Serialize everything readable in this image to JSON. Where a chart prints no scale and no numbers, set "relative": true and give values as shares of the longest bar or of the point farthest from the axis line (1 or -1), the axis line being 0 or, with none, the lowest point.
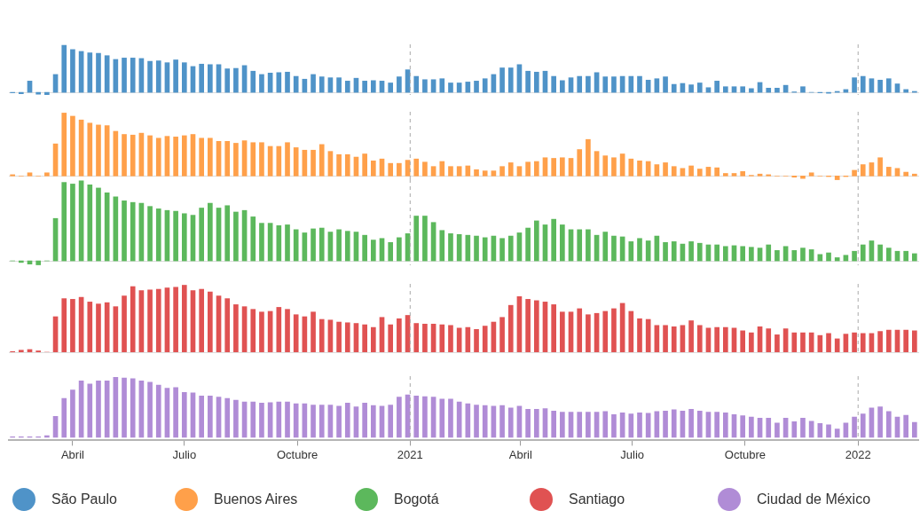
{
  "chart_data": [
    {
      "type": "bar",
      "relative": true,
      "tick_labels": false,
      "xlim": [
        "2020-02-09",
        "2022-02-19"
      ],
      "x": [
        "2020-02-12",
        "2020-02-19",
        "2020-02-26",
        "2020-03-04",
        "2020-03-11",
        "2020-03-18",
        "2020-03-25",
        "2020-04-01",
        "2020-04-08",
        "2020-04-15",
        "2020-04-22",
        "2020-04-29",
        "2020-05-06",
        "2020-05-13",
        "2020-05-20",
        "2020-05-27",
        "2020-06-03",
        "2020-06-10",
        "2020-06-17",
        "2020-06-24",
        "2020-07-01",
        "2020-07-08",
        "2020-07-15",
        "2020-07-22",
        "2020-07-29",
        "2020-08-05",
        "2020-08-12",
        "2020-08-19",
        "2020-08-26",
        "2020-09-02",
        "2020-09-09",
        "2020-09-16",
        "2020-09-23",
        "2020-09-30",
        "2020-10-07",
        "2020-10-14",
        "2020-10-21",
        "2020-10-28",
        "2020-11-04",
        "2020-11-11",
        "2020-11-18",
        "2020-11-25",
        "2020-12-02",
        "2020-12-09",
        "2020-12-16",
        "2020-12-23",
        "2020-12-30",
        "2021-01-06",
        "2021-01-13",
        "2021-01-20",
        "2021-01-27",
        "2021-02-03",
        "2021-02-10",
        "2021-02-17",
        "2021-02-24",
        "2021-03-03",
        "2021-03-10",
        "2021-03-17",
        "2021-03-24",
        "2021-03-31",
        "2021-04-07",
        "2021-04-14",
        "2021-04-21",
        "2021-04-28",
        "2021-05-05",
        "2021-05-12",
        "2021-05-19",
        "2021-05-26",
        "2021-06-02",
        "2021-06-09",
        "2021-06-16",
        "2021-06-23",
        "2021-06-30",
        "2021-07-07",
        "2021-07-14",
        "2021-07-21",
        "2021-07-28",
        "2021-08-04",
        "2021-08-11",
        "2021-08-18",
        "2021-08-25",
        "2021-09-01",
        "2021-09-08",
        "2021-09-15",
        "2021-09-22",
        "2021-09-29",
        "2021-10-06",
        "2021-10-13",
        "2021-10-20",
        "2021-10-27",
        "2021-11-03",
        "2021-11-10",
        "2021-11-17",
        "2021-11-24",
        "2021-12-01",
        "2021-12-08",
        "2021-12-15",
        "2021-12-22",
        "2021-12-29",
        "2022-01-05",
        "2022-01-12",
        "2022-01-19",
        "2022-01-26",
        "2022-02-02",
        "2022-02-09",
        "2022-02-16"
      ],
      "series": [
        {
          "name": "São Paulo",
          "color": "#4f93c8",
          "values": [
            -0.01,
            -0.03,
            0.24,
            -0.04,
            -0.05,
            0.38,
            1,
            0.91,
            0.87,
            0.84,
            0.83,
            0.78,
            0.7,
            0.73,
            0.73,
            0.72,
            0.66,
            0.67,
            0.63,
            0.69,
            0.63,
            0.55,
            0.6,
            0.59,
            0.59,
            0.5,
            0.51,
            0.57,
            0.45,
            0.38,
            0.41,
            0.42,
            0.43,
            0.34,
            0.28,
            0.38,
            0.33,
            0.31,
            0.31,
            0.24,
            0.3,
            0.24,
            0.25,
            0.24,
            0.2,
            0.33,
            0.48,
            0.34,
            0.27,
            0.27,
            0.29,
            0.2,
            0.2,
            0.22,
            0.24,
            0.29,
            0.38,
            0.52,
            0.52,
            0.59,
            0.45,
            0.43,
            0.45,
            0.34,
            0.25,
            0.31,
            0.34,
            0.34,
            0.42,
            0.33,
            0.33,
            0.34,
            0.34,
            0.34,
            0.26,
            0.29,
            0.33,
            0.17,
            0.19,
            0.16,
            0.2,
            0.1,
            0.24,
            0.12,
            0.12,
            0.12,
            0.08,
            0.21,
            0.09,
            0.09,
            0.15,
            0.01,
            0.12,
            0,
            -0.01,
            -0.02,
            0.02,
            0.06,
            0.31,
            0.34,
            0.29,
            0.26,
            0.29,
            0.18,
            0.06,
            0.02
          ]
        }
      ],
      "legend": "bottom",
      "ref_lines": [
        {
          "axis": "x",
          "value": "2021-01-01",
          "color": "#aaaaaa",
          "line_style": "dashed"
        },
        {
          "axis": "x",
          "value": "2022-01-01",
          "color": "#aaaaaa",
          "line_style": "dashed"
        }
      ]
    },
    {
      "type": "bar",
      "relative": true,
      "tick_labels": false,
      "xlim": [
        "2020-02-09",
        "2022-02-19"
      ],
      "x": [
        "2020-02-12",
        "2020-02-19",
        "2020-02-26",
        "2020-03-04",
        "2020-03-11",
        "2020-03-18",
        "2020-03-25",
        "2020-04-01",
        "2020-04-08",
        "2020-04-15",
        "2020-04-22",
        "2020-04-29",
        "2020-05-06",
        "2020-05-13",
        "2020-05-20",
        "2020-05-27",
        "2020-06-03",
        "2020-06-10",
        "2020-06-17",
        "2020-06-24",
        "2020-07-01",
        "2020-07-08",
        "2020-07-15",
        "2020-07-22",
        "2020-07-29",
        "2020-08-05",
        "2020-08-12",
        "2020-08-19",
        "2020-08-26",
        "2020-09-02",
        "2020-09-09",
        "2020-09-16",
        "2020-09-23",
        "2020-09-30",
        "2020-10-07",
        "2020-10-14",
        "2020-10-21",
        "2020-10-28",
        "2020-11-04",
        "2020-11-11",
        "2020-11-18",
        "2020-11-25",
        "2020-12-02",
        "2020-12-09",
        "2020-12-16",
        "2020-12-23",
        "2020-12-30",
        "2021-01-06",
        "2021-01-13",
        "2021-01-20",
        "2021-01-27",
        "2021-02-03",
        "2021-02-10",
        "2021-02-17",
        "2021-02-24",
        "2021-03-03",
        "2021-03-10",
        "2021-03-17",
        "2021-03-24",
        "2021-03-31",
        "2021-04-07",
        "2021-04-14",
        "2021-04-21",
        "2021-04-28",
        "2021-05-05",
        "2021-05-12",
        "2021-05-19",
        "2021-05-26",
        "2021-06-02",
        "2021-06-09",
        "2021-06-16",
        "2021-06-23",
        "2021-06-30",
        "2021-07-07",
        "2021-07-14",
        "2021-07-21",
        "2021-07-28",
        "2021-08-04",
        "2021-08-11",
        "2021-08-18",
        "2021-08-25",
        "2021-09-01",
        "2021-09-08",
        "2021-09-15",
        "2021-09-22",
        "2021-09-29",
        "2021-10-06",
        "2021-10-13",
        "2021-10-20",
        "2021-10-27",
        "2021-11-03",
        "2021-11-10",
        "2021-11-17",
        "2021-11-24",
        "2021-12-01",
        "2021-12-08",
        "2021-12-15",
        "2021-12-22",
        "2021-12-29",
        "2022-01-05",
        "2022-01-12",
        "2022-01-19",
        "2022-01-26",
        "2022-02-02",
        "2022-02-09",
        "2022-02-16"
      ],
      "series": [
        {
          "name": "Buenos Aires",
          "color": "#ffa04a",
          "values": [
            0.02,
            0,
            0.05,
            0,
            0.05,
            0.51,
            1,
            0.95,
            0.89,
            0.84,
            0.81,
            0.8,
            0.71,
            0.66,
            0.65,
            0.68,
            0.64,
            0.6,
            0.63,
            0.62,
            0.64,
            0.66,
            0.6,
            0.6,
            0.55,
            0.55,
            0.52,
            0.56,
            0.53,
            0.53,
            0.47,
            0.47,
            0.53,
            0.45,
            0.41,
            0.41,
            0.5,
            0.39,
            0.34,
            0.34,
            0.3,
            0.35,
            0.24,
            0.27,
            0.2,
            0.2,
            0.25,
            0.27,
            0.22,
            0.15,
            0.23,
            0.15,
            0.15,
            0.16,
            0.1,
            0.08,
            0.08,
            0.15,
            0.21,
            0.15,
            0.22,
            0.23,
            0.29,
            0.28,
            0.29,
            0.28,
            0.42,
            0.58,
            0.39,
            0.32,
            0.29,
            0.35,
            0.27,
            0.24,
            0.23,
            0.18,
            0.21,
            0.15,
            0.12,
            0.16,
            0.11,
            0.14,
            0.13,
            0.04,
            0.04,
            0.07,
            0.01,
            0.03,
            0.02,
            0,
            0,
            -0.02,
            -0.04,
            0.05,
            0,
            -0.01,
            -0.06,
            -0.01,
            0.09,
            0.18,
            0.21,
            0.29,
            0.14,
            0.12,
            0.06,
            0.03
          ]
        }
      ],
      "legend": "bottom",
      "ref_lines": [
        {
          "axis": "x",
          "value": "2021-01-01",
          "color": "#aaaaaa",
          "line_style": "dashed"
        },
        {
          "axis": "x",
          "value": "2022-01-01",
          "color": "#aaaaaa",
          "line_style": "dashed"
        }
      ]
    },
    {
      "type": "bar",
      "relative": true,
      "tick_labels": false,
      "xlim": [
        "2020-02-09",
        "2022-02-19"
      ],
      "x": [
        "2020-02-12",
        "2020-02-19",
        "2020-02-26",
        "2020-03-04",
        "2020-03-11",
        "2020-03-18",
        "2020-03-25",
        "2020-04-01",
        "2020-04-08",
        "2020-04-15",
        "2020-04-22",
        "2020-04-29",
        "2020-05-06",
        "2020-05-13",
        "2020-05-20",
        "2020-05-27",
        "2020-06-03",
        "2020-06-10",
        "2020-06-17",
        "2020-06-24",
        "2020-07-01",
        "2020-07-08",
        "2020-07-15",
        "2020-07-22",
        "2020-07-29",
        "2020-08-05",
        "2020-08-12",
        "2020-08-19",
        "2020-08-26",
        "2020-09-02",
        "2020-09-09",
        "2020-09-16",
        "2020-09-23",
        "2020-09-30",
        "2020-10-07",
        "2020-10-14",
        "2020-10-21",
        "2020-10-28",
        "2020-11-04",
        "2020-11-11",
        "2020-11-18",
        "2020-11-25",
        "2020-12-02",
        "2020-12-09",
        "2020-12-16",
        "2020-12-23",
        "2020-12-30",
        "2021-01-06",
        "2021-01-13",
        "2021-01-20",
        "2021-01-27",
        "2021-02-03",
        "2021-02-10",
        "2021-02-17",
        "2021-02-24",
        "2021-03-03",
        "2021-03-10",
        "2021-03-17",
        "2021-03-24",
        "2021-03-31",
        "2021-04-07",
        "2021-04-14",
        "2021-04-21",
        "2021-04-28",
        "2021-05-05",
        "2021-05-12",
        "2021-05-19",
        "2021-05-26",
        "2021-06-02",
        "2021-06-09",
        "2021-06-16",
        "2021-06-23",
        "2021-06-30",
        "2021-07-07",
        "2021-07-14",
        "2021-07-21",
        "2021-07-28",
        "2021-08-04",
        "2021-08-11",
        "2021-08-18",
        "2021-08-25",
        "2021-09-01",
        "2021-09-08",
        "2021-09-15",
        "2021-09-22",
        "2021-09-29",
        "2021-10-06",
        "2021-10-13",
        "2021-10-20",
        "2021-10-27",
        "2021-11-03",
        "2021-11-10",
        "2021-11-17",
        "2021-11-24",
        "2021-12-01",
        "2021-12-08",
        "2021-12-15",
        "2021-12-22",
        "2021-12-29",
        "2022-01-05",
        "2022-01-12",
        "2022-01-19",
        "2022-01-26",
        "2022-02-02",
        "2022-02-09",
        "2022-02-16"
      ],
      "series": [
        {
          "name": "Bogotá",
          "color": "#5cb85c",
          "values": [
            0,
            -0.02,
            -0.04,
            -0.05,
            0,
            0.53,
            0.98,
            0.96,
            1,
            0.95,
            0.91,
            0.85,
            0.8,
            0.75,
            0.73,
            0.72,
            0.68,
            0.65,
            0.63,
            0.62,
            0.59,
            0.57,
            0.66,
            0.72,
            0.66,
            0.69,
            0.61,
            0.63,
            0.55,
            0.47,
            0.47,
            0.44,
            0.45,
            0.39,
            0.35,
            0.4,
            0.41,
            0.36,
            0.39,
            0.37,
            0.36,
            0.32,
            0.26,
            0.28,
            0.23,
            0.29,
            0.34,
            0.56,
            0.56,
            0.48,
            0.38,
            0.34,
            0.33,
            0.32,
            0.31,
            0.29,
            0.31,
            0.28,
            0.31,
            0.35,
            0.41,
            0.5,
            0.45,
            0.52,
            0.45,
            0.39,
            0.39,
            0.39,
            0.32,
            0.36,
            0.31,
            0.3,
            0.24,
            0.28,
            0.25,
            0.31,
            0.23,
            0.24,
            0.21,
            0.24,
            0.22,
            0.2,
            0.2,
            0.18,
            0.19,
            0.18,
            0.17,
            0.16,
            0.2,
            0.13,
            0.18,
            0.13,
            0.16,
            0.14,
            0.08,
            0.1,
            0.04,
            0.07,
            0.12,
            0.2,
            0.25,
            0.2,
            0.16,
            0.12,
            0.12,
            0.09
          ]
        }
      ],
      "legend": "bottom",
      "ref_lines": [
        {
          "axis": "x",
          "value": "2021-01-01",
          "color": "#aaaaaa",
          "line_style": "dashed"
        },
        {
          "axis": "x",
          "value": "2022-01-01",
          "color": "#aaaaaa",
          "line_style": "dashed"
        }
      ]
    },
    {
      "type": "bar",
      "relative": true,
      "tick_labels": false,
      "xlim": [
        "2020-02-09",
        "2022-02-19"
      ],
      "x": [
        "2020-02-12",
        "2020-02-19",
        "2020-02-26",
        "2020-03-04",
        "2020-03-11",
        "2020-03-18",
        "2020-03-25",
        "2020-04-01",
        "2020-04-08",
        "2020-04-15",
        "2020-04-22",
        "2020-04-29",
        "2020-05-06",
        "2020-05-13",
        "2020-05-20",
        "2020-05-27",
        "2020-06-03",
        "2020-06-10",
        "2020-06-17",
        "2020-06-24",
        "2020-07-01",
        "2020-07-08",
        "2020-07-15",
        "2020-07-22",
        "2020-07-29",
        "2020-08-05",
        "2020-08-12",
        "2020-08-19",
        "2020-08-26",
        "2020-09-02",
        "2020-09-09",
        "2020-09-16",
        "2020-09-23",
        "2020-09-30",
        "2020-10-07",
        "2020-10-14",
        "2020-10-21",
        "2020-10-28",
        "2020-11-04",
        "2020-11-11",
        "2020-11-18",
        "2020-11-25",
        "2020-12-02",
        "2020-12-09",
        "2020-12-16",
        "2020-12-23",
        "2020-12-30",
        "2021-01-06",
        "2021-01-13",
        "2021-01-20",
        "2021-01-27",
        "2021-02-03",
        "2021-02-10",
        "2021-02-17",
        "2021-02-24",
        "2021-03-03",
        "2021-03-10",
        "2021-03-17",
        "2021-03-24",
        "2021-03-31",
        "2021-04-07",
        "2021-04-14",
        "2021-04-21",
        "2021-04-28",
        "2021-05-05",
        "2021-05-12",
        "2021-05-19",
        "2021-05-26",
        "2021-06-02",
        "2021-06-09",
        "2021-06-16",
        "2021-06-23",
        "2021-06-30",
        "2021-07-07",
        "2021-07-14",
        "2021-07-21",
        "2021-07-28",
        "2021-08-04",
        "2021-08-11",
        "2021-08-18",
        "2021-08-25",
        "2021-09-01",
        "2021-09-08",
        "2021-09-15",
        "2021-09-22",
        "2021-09-29",
        "2021-10-06",
        "2021-10-13",
        "2021-10-20",
        "2021-10-27",
        "2021-11-03",
        "2021-11-10",
        "2021-11-17",
        "2021-11-24",
        "2021-12-01",
        "2021-12-08",
        "2021-12-15",
        "2021-12-22",
        "2021-12-29",
        "2022-01-05",
        "2022-01-12",
        "2022-01-19",
        "2022-01-26",
        "2022-02-02",
        "2022-02-09",
        "2022-02-16"
      ],
      "series": [
        {
          "name": "Santiago",
          "color": "#e05252",
          "values": [
            0.01,
            0.03,
            0.04,
            0.02,
            0,
            0.53,
            0.8,
            0.79,
            0.82,
            0.75,
            0.72,
            0.74,
            0.68,
            0.84,
            0.98,
            0.92,
            0.93,
            0.94,
            0.96,
            0.97,
            1,
            0.92,
            0.94,
            0.9,
            0.84,
            0.8,
            0.71,
            0.68,
            0.64,
            0.6,
            0.61,
            0.67,
            0.64,
            0.56,
            0.53,
            0.6,
            0.49,
            0.48,
            0.45,
            0.44,
            0.43,
            0.41,
            0.37,
            0.52,
            0.41,
            0.5,
            0.55,
            0.43,
            0.42,
            0.42,
            0.41,
            0.4,
            0.36,
            0.37,
            0.34,
            0.39,
            0.45,
            0.52,
            0.7,
            0.83,
            0.79,
            0.77,
            0.75,
            0.71,
            0.6,
            0.6,
            0.65,
            0.56,
            0.58,
            0.61,
            0.65,
            0.73,
            0.61,
            0.5,
            0.49,
            0.4,
            0.4,
            0.38,
            0.4,
            0.47,
            0.4,
            0.36,
            0.37,
            0.37,
            0.36,
            0.32,
            0.29,
            0.38,
            0.35,
            0.26,
            0.35,
            0.29,
            0.29,
            0.29,
            0.25,
            0.28,
            0.2,
            0.27,
            0.29,
            0.28,
            0.28,
            0.31,
            0.33,
            0.33,
            0.33,
            0.32
          ]
        }
      ],
      "legend": "bottom",
      "ref_lines": [
        {
          "axis": "x",
          "value": "2021-01-01",
          "color": "#aaaaaa",
          "line_style": "dashed"
        },
        {
          "axis": "x",
          "value": "2022-01-01",
          "color": "#aaaaaa",
          "line_style": "dashed"
        }
      ]
    },
    {
      "type": "bar",
      "relative": true,
      "tick_labels": "x",
      "legend": "bottom",
      "xlim": [
        "2020-02-09",
        "2022-02-19"
      ],
      "xticks": [
        {
          "value": "2020-04-01",
          "label": "Abril"
        },
        {
          "value": "2020-07-01",
          "label": "Julio"
        },
        {
          "value": "2020-10-01",
          "label": "Octubre"
        },
        {
          "value": "2021-01-01",
          "label": "2021"
        },
        {
          "value": "2021-04-01",
          "label": "Abril"
        },
        {
          "value": "2021-07-01",
          "label": "Julio"
        },
        {
          "value": "2021-10-01",
          "label": "Octubre"
        },
        {
          "value": "2022-01-01",
          "label": "2022"
        }
      ],
      "x": [
        "2020-02-12",
        "2020-02-19",
        "2020-02-26",
        "2020-03-04",
        "2020-03-11",
        "2020-03-18",
        "2020-03-25",
        "2020-04-01",
        "2020-04-08",
        "2020-04-15",
        "2020-04-22",
        "2020-04-29",
        "2020-05-06",
        "2020-05-13",
        "2020-05-20",
        "2020-05-27",
        "2020-06-03",
        "2020-06-10",
        "2020-06-17",
        "2020-06-24",
        "2020-07-01",
        "2020-07-08",
        "2020-07-15",
        "2020-07-22",
        "2020-07-29",
        "2020-08-05",
        "2020-08-12",
        "2020-08-19",
        "2020-08-26",
        "2020-09-02",
        "2020-09-09",
        "2020-09-16",
        "2020-09-23",
        "2020-09-30",
        "2020-10-07",
        "2020-10-14",
        "2020-10-21",
        "2020-10-28",
        "2020-11-04",
        "2020-11-11",
        "2020-11-18",
        "2020-11-25",
        "2020-12-02",
        "2020-12-09",
        "2020-12-16",
        "2020-12-23",
        "2020-12-30",
        "2021-01-06",
        "2021-01-13",
        "2021-01-20",
        "2021-01-27",
        "2021-02-03",
        "2021-02-10",
        "2021-02-17",
        "2021-02-24",
        "2021-03-03",
        "2021-03-10",
        "2021-03-17",
        "2021-03-24",
        "2021-03-31",
        "2021-04-07",
        "2021-04-14",
        "2021-04-21",
        "2021-04-28",
        "2021-05-05",
        "2021-05-12",
        "2021-05-19",
        "2021-05-26",
        "2021-06-02",
        "2021-06-09",
        "2021-06-16",
        "2021-06-23",
        "2021-06-30",
        "2021-07-07",
        "2021-07-14",
        "2021-07-21",
        "2021-07-28",
        "2021-08-04",
        "2021-08-11",
        "2021-08-18",
        "2021-08-25",
        "2021-09-01",
        "2021-09-08",
        "2021-09-15",
        "2021-09-22",
        "2021-09-29",
        "2021-10-06",
        "2021-10-13",
        "2021-10-20",
        "2021-10-27",
        "2021-11-03",
        "2021-11-10",
        "2021-11-17",
        "2021-11-24",
        "2021-12-01",
        "2021-12-08",
        "2021-12-15",
        "2021-12-22",
        "2021-12-29",
        "2022-01-05",
        "2022-01-12",
        "2022-01-19",
        "2022-01-26",
        "2022-02-02",
        "2022-02-09",
        "2022-02-16"
      ],
      "series": [
        {
          "name": "Ciudad de México",
          "color": "#b08cd6",
          "values": [
            0.01,
            0.01,
            0.01,
            0.01,
            0.03,
            0.35,
            0.65,
            0.79,
            0.94,
            0.89,
            0.94,
            0.94,
            1,
            0.99,
            0.98,
            0.94,
            0.92,
            0.87,
            0.82,
            0.83,
            0.75,
            0.74,
            0.69,
            0.69,
            0.67,
            0.65,
            0.62,
            0.59,
            0.59,
            0.57,
            0.58,
            0.59,
            0.59,
            0.56,
            0.56,
            0.54,
            0.54,
            0.54,
            0.52,
            0.57,
            0.51,
            0.57,
            0.53,
            0.52,
            0.54,
            0.67,
            0.71,
            0.69,
            0.68,
            0.67,
            0.64,
            0.64,
            0.59,
            0.56,
            0.54,
            0.53,
            0.52,
            0.53,
            0.49,
            0.52,
            0.47,
            0.47,
            0.48,
            0.44,
            0.42,
            0.42,
            0.42,
            0.42,
            0.42,
            0.43,
            0.38,
            0.41,
            0.39,
            0.41,
            0.4,
            0.43,
            0.44,
            0.46,
            0.44,
            0.47,
            0.44,
            0.42,
            0.42,
            0.41,
            0.38,
            0.36,
            0.34,
            0.32,
            0.32,
            0.24,
            0.32,
            0.26,
            0.32,
            0.27,
            0.23,
            0.21,
            0.14,
            0.24,
            0.34,
            0.39,
            0.49,
            0.51,
            0.43,
            0.34,
            0.37,
            0.25
          ]
        }
      ],
      "ref_lines": [
        {
          "axis": "x",
          "value": "2021-01-01",
          "color": "#aaaaaa",
          "line_style": "dashed"
        },
        {
          "axis": "x",
          "value": "2022-01-01",
          "color": "#aaaaaa",
          "line_style": "dashed"
        }
      ]
    }
  ]
}
